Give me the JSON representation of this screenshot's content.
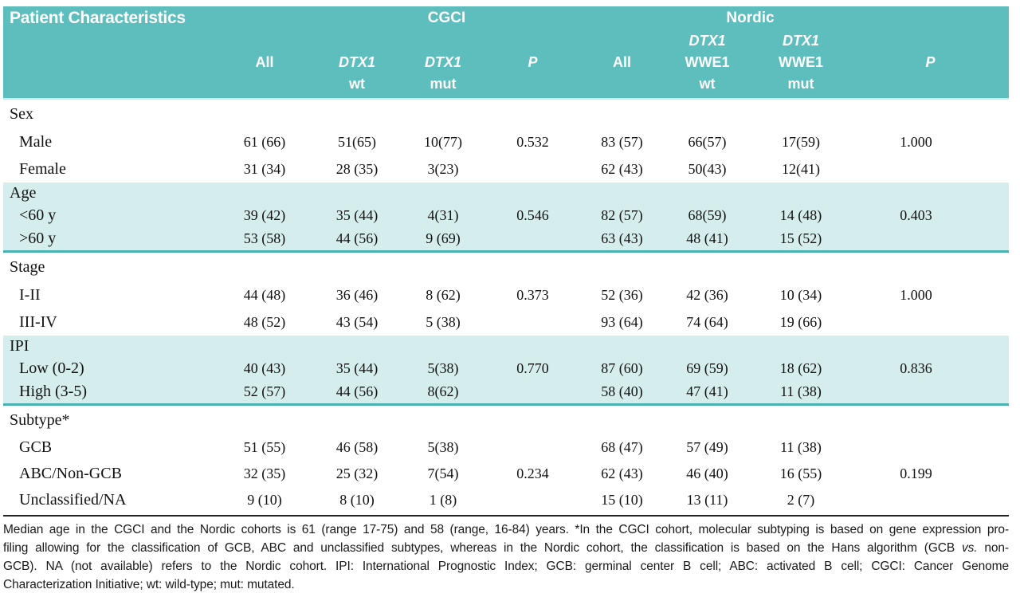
{
  "header": {
    "title": "Patient Characteristics",
    "group_cgci": "CGCI",
    "group_nordic": "Nordic",
    "columns": [
      {
        "l1": "",
        "l2": "",
        "l3": ""
      },
      {
        "l1": "",
        "l2": "All",
        "l3": ""
      },
      {
        "l1": "",
        "l2": "DTX1",
        "l3": "wt"
      },
      {
        "l1": "",
        "l2": "DTX1",
        "l3": "mut"
      },
      {
        "l1": "",
        "l2": "P",
        "l3": ""
      },
      {
        "l1": "",
        "l2": "All",
        "l3": ""
      },
      {
        "l1": "DTX1",
        "l2": "WWE1",
        "l3": "wt"
      },
      {
        "l1": "DTX1",
        "l2": "WWE1",
        "l3": "mut"
      },
      {
        "l1": "",
        "l2": "P",
        "l3": ""
      }
    ]
  },
  "table": {
    "sections": [
      {
        "id": "sex",
        "name": "Sex",
        "highlighted": false,
        "rows": [
          {
            "label": "Male",
            "cells": [
              "61 (66)",
              "51(65)",
              "10(77)",
              "0.532",
              "83 (57)",
              "66(57)",
              "17(59)",
              "1.000"
            ]
          },
          {
            "label": "Female",
            "cells": [
              "31 (34)",
              "28 (35)",
              "3(23)",
              "",
              "62 (43)",
              "50(43)",
              "12(41)",
              ""
            ]
          }
        ]
      },
      {
        "id": "age",
        "name": "Age",
        "highlighted": true,
        "rows": [
          {
            "label": "<60 y",
            "cells": [
              "39 (42)",
              "35 (44)",
              "4(31)",
              "0.546",
              "82 (57)",
              "68(59)",
              "14 (48)",
              "0.403"
            ]
          },
          {
            "label": ">60 y",
            "cells": [
              "53 (58)",
              "44 (56)",
              "9 (69)",
              "",
              "63 (43)",
              "48 (41)",
              "15 (52)",
              ""
            ]
          }
        ]
      },
      {
        "id": "stage",
        "name": "Stage",
        "highlighted": false,
        "rows": [
          {
            "label": "I-II",
            "cells": [
              "44 (48)",
              "36 (46)",
              "8 (62)",
              "0.373",
              "52 (36)",
              "42 (36)",
              "10 (34)",
              "1.000"
            ]
          },
          {
            "label": "III-IV",
            "cells": [
              "48 (52)",
              "43 (54)",
              "5 (38)",
              "",
              "93 (64)",
              "74 (64)",
              "19 (66)",
              ""
            ]
          }
        ]
      },
      {
        "id": "ipi",
        "name": "IPI",
        "highlighted": true,
        "rows": [
          {
            "label": "Low (0-2)",
            "cells": [
              "40 (43)",
              "35 (44)",
              "5(38)",
              "0.770",
              "87 (60)",
              "69 (59)",
              "18 (62)",
              "0.836"
            ]
          },
          {
            "label": "High (3-5)",
            "cells": [
              "52 (57)",
              "44 (56)",
              "8(62)",
              "",
              "58 (40)",
              "47 (41)",
              "11 (38)",
              ""
            ]
          }
        ]
      },
      {
        "id": "subtype",
        "name": "Subtype*",
        "highlighted": false,
        "rows": [
          {
            "label": "GCB",
            "cells": [
              "51 (55)",
              "46 (58)",
              "5(38)",
              "",
              "68 (47)",
              "57 (49)",
              "11 (38)",
              ""
            ]
          },
          {
            "label": "ABC/Non-GCB",
            "cells": [
              "32 (35)",
              "25 (32)",
              "7(54)",
              "0.234",
              "62 (43)",
              "46 (40)",
              "16 (55)",
              "0.199"
            ]
          },
          {
            "label": "Unclassified/NA",
            "cells": [
              "9 (10)",
              "8 (10)",
              "1 (8)",
              "",
              "15 (10)",
              "13 (11)",
              "2 (7)",
              ""
            ]
          }
        ]
      }
    ]
  },
  "footnote": {
    "line1": "Median age in the CGCI and the Nordic cohorts is 61 (range 17-75) and 58 (range, 16-84) years. *In the CGCI cohort, molecular subtyping is based on gene expression pro-",
    "line2_a": "filing allowing for the classification of GCB, ABC and unclassified subtypes, whereas in the Nordic cohort, the classification is based on the Hans algorithm (GCB ",
    "line2_italic": "vs.",
    "line2_b": " non-",
    "line3": "GCB). NA (not available) refers to the Nordic cohort. IPI: International Prognostic Index; GCB: germinal center B cell; ABC: activated B cell; CGCI: Cancer Genome",
    "line4": "Characterization Initiative; wt: wild-type; mut: mutated."
  },
  "colors": {
    "header_teal": "#5ebdbd",
    "band_light_teal": "#d6eded",
    "band_border_teal": "#49b3b3",
    "footer_rule": "#222222"
  }
}
